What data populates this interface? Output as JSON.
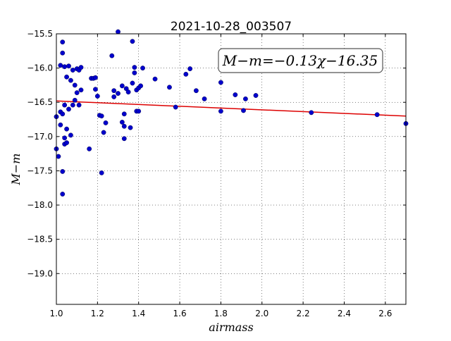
{
  "chart_data": {
    "type": "scatter",
    "title": "2021-10-28_003507",
    "xlabel": "airmass",
    "ylabel": "M−m",
    "xlim": [
      1.0,
      2.7
    ],
    "ylim": [
      -19.45,
      -15.5
    ],
    "y_inverted": true,
    "grid": true,
    "x_ticks": [
      "1.0",
      "1.2",
      "1.4",
      "1.6",
      "1.8",
      "2.0",
      "2.2",
      "2.4",
      "2.6"
    ],
    "x_tick_values": [
      1.0,
      1.2,
      1.4,
      1.6,
      1.8,
      2.0,
      2.2,
      2.4,
      2.6
    ],
    "y_ticks": [
      "−15.5",
      "−16.0",
      "−16.5",
      "−17.0",
      "−17.5",
      "−18.0",
      "−18.5",
      "−19.0"
    ],
    "y_tick_values": [
      -15.5,
      -16.0,
      -16.5,
      -17.0,
      -17.5,
      -18.0,
      -18.5,
      -19.0
    ],
    "annotation": {
      "lhs": "M−m",
      "rhs": "=−0.13χ−16.35"
    },
    "fit_line": {
      "slope": -0.13,
      "intercept": -16.35,
      "color": "#dd0000"
    },
    "marker_color": "#0000cc",
    "points": {
      "x": [
        1.0,
        1.01,
        1.02,
        1.02,
        1.02,
        1.03,
        1.03,
        1.03,
        1.03,
        1.04,
        1.04,
        1.04,
        1.04,
        1.05,
        1.05,
        1.05,
        1.06,
        1.06,
        1.07,
        1.07,
        1.08,
        1.08,
        1.09,
        1.09,
        1.1,
        1.1,
        1.11,
        1.11,
        1.12,
        1.12,
        1.16,
        1.17,
        1.18,
        1.19,
        1.19,
        1.2,
        1.21,
        1.22,
        1.22,
        1.23,
        1.24,
        1.27,
        1.28,
        1.28,
        1.3,
        1.3,
        1.32,
        1.32,
        1.33,
        1.33,
        1.33,
        1.34,
        1.35,
        1.36,
        1.37,
        1.37,
        1.38,
        1.38,
        1.39,
        1.39,
        1.4,
        1.4,
        1.41,
        1.42,
        1.48,
        1.55,
        1.58,
        1.63,
        1.65,
        1.68,
        1.72,
        1.8,
        1.8,
        1.87,
        1.91,
        1.92,
        1.97,
        2.24,
        2.56,
        2.7,
        1.0,
        1.03
      ],
      "y": [
        -16.71,
        -17.29,
        -15.96,
        -16.64,
        -16.83,
        -15.62,
        -15.78,
        -17.51,
        -17.84,
        -15.98,
        -16.54,
        -17.02,
        -17.11,
        -16.13,
        -16.89,
        -17.09,
        -15.97,
        -16.6,
        -16.18,
        -16.98,
        -16.03,
        -16.54,
        -16.25,
        -16.47,
        -16.01,
        -16.36,
        -16.54,
        -16.03,
        -15.99,
        -16.32,
        -17.18,
        -16.15,
        -16.15,
        -16.31,
        -16.14,
        -16.41,
        -16.69,
        -17.53,
        -16.7,
        -16.94,
        -16.8,
        -15.82,
        -16.42,
        -16.33,
        -15.47,
        -16.37,
        -16.26,
        -16.79,
        -16.85,
        -17.03,
        -16.67,
        -16.3,
        -16.35,
        -16.87,
        -16.22,
        -15.61,
        -15.99,
        -16.07,
        -16.32,
        -16.63,
        -16.63,
        -16.29,
        -16.26,
        -16.0,
        -16.16,
        -16.28,
        -16.57,
        -16.09,
        -16.01,
        -16.33,
        -16.45,
        -16.21,
        -16.63,
        -16.39,
        -16.62,
        -16.45,
        -16.4,
        -16.65,
        -16.68,
        -16.81,
        -17.18,
        -16.67
      ]
    }
  }
}
